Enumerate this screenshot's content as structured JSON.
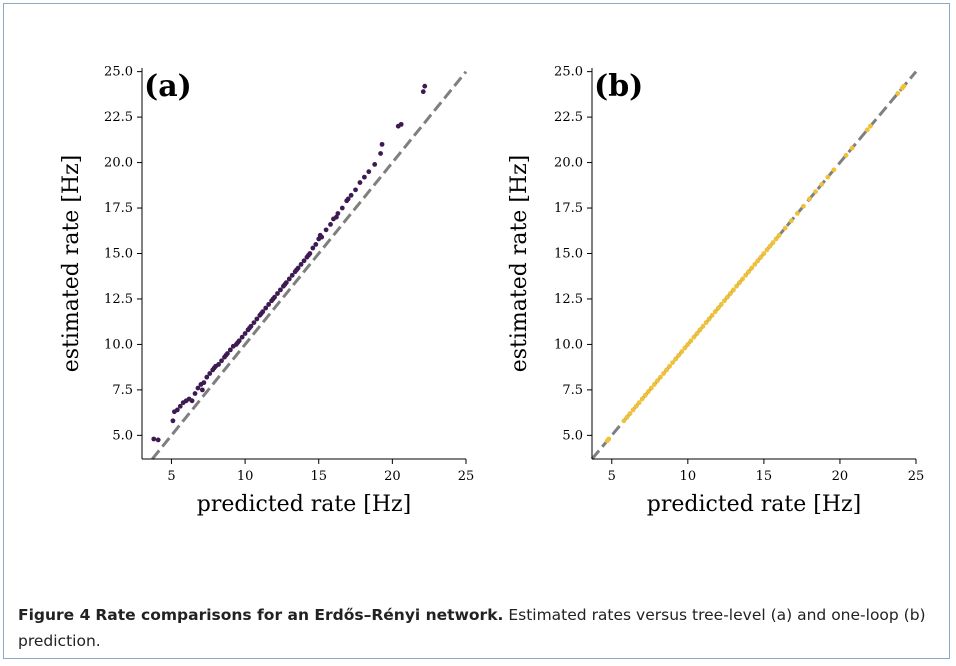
{
  "caption": {
    "label": "Figure 4",
    "title": "Rate comparisons for an Erdős–Rényi network.",
    "text": " Estimated rates versus tree-level (a) and one-loop (b) prediction."
  },
  "chart_data": [
    {
      "type": "scatter",
      "panel_label": "(a)",
      "xlabel": "predicted rate [Hz]",
      "ylabel": "estimated rate [Hz]",
      "xlim": [
        3.0,
        25.0
      ],
      "ylim": [
        3.7,
        25.2
      ],
      "xticks": [
        "5",
        "10",
        "15",
        "20",
        "25"
      ],
      "yticks": [
        "5.0",
        "7.5",
        "10.0",
        "12.5",
        "15.0",
        "17.5",
        "20.0",
        "22.5",
        "25.0"
      ],
      "reference_line": "y = x (dashed, gray)",
      "marker_color": "#3d1a52",
      "grid": false,
      "series": [
        {
          "points": [
            [
              3.8,
              4.8
            ],
            [
              4.1,
              4.75
            ],
            [
              5.1,
              5.8
            ],
            [
              5.2,
              6.3
            ],
            [
              5.4,
              6.4
            ],
            [
              5.6,
              6.6
            ],
            [
              5.8,
              6.8
            ],
            [
              6.0,
              6.9
            ],
            [
              6.2,
              7.0
            ],
            [
              6.4,
              6.9
            ],
            [
              6.6,
              7.3
            ],
            [
              6.8,
              7.6
            ],
            [
              7.0,
              7.8
            ],
            [
              7.2,
              7.9
            ],
            [
              7.4,
              8.2
            ],
            [
              7.6,
              8.4
            ],
            [
              7.8,
              8.6
            ],
            [
              8.0,
              8.8
            ],
            [
              8.2,
              8.9
            ],
            [
              8.4,
              9.1
            ],
            [
              8.6,
              9.3
            ],
            [
              8.8,
              9.5
            ],
            [
              9.0,
              9.7
            ],
            [
              9.2,
              9.9
            ],
            [
              9.4,
              10.0
            ],
            [
              9.6,
              10.2
            ],
            [
              9.8,
              10.4
            ],
            [
              10.0,
              10.6
            ],
            [
              10.2,
              10.8
            ],
            [
              10.4,
              11.0
            ],
            [
              10.6,
              11.2
            ],
            [
              10.8,
              11.4
            ],
            [
              11.0,
              11.6
            ],
            [
              11.2,
              11.8
            ],
            [
              11.4,
              12.0
            ],
            [
              11.6,
              12.2
            ],
            [
              11.8,
              12.4
            ],
            [
              12.0,
              12.6
            ],
            [
              12.2,
              12.8
            ],
            [
              12.4,
              13.0
            ],
            [
              12.6,
              13.2
            ],
            [
              12.8,
              13.4
            ],
            [
              13.0,
              13.6
            ],
            [
              13.2,
              13.8
            ],
            [
              13.4,
              14.0
            ],
            [
              13.6,
              14.2
            ],
            [
              13.8,
              14.4
            ],
            [
              14.0,
              14.6
            ],
            [
              14.2,
              14.8
            ],
            [
              14.4,
              15.0
            ],
            [
              14.6,
              15.3
            ],
            [
              14.8,
              15.5
            ],
            [
              15.0,
              15.8
            ],
            [
              15.2,
              15.9
            ],
            [
              15.5,
              16.3
            ],
            [
              15.8,
              16.6
            ],
            [
              16.0,
              16.9
            ],
            [
              16.3,
              17.2
            ],
            [
              16.6,
              17.5
            ],
            [
              16.9,
              17.9
            ],
            [
              17.2,
              18.2
            ],
            [
              17.5,
              18.5
            ],
            [
              17.8,
              18.9
            ],
            [
              18.1,
              19.2
            ],
            [
              18.4,
              19.5
            ],
            [
              18.8,
              19.9
            ],
            [
              19.2,
              20.5
            ],
            [
              19.3,
              21.0
            ],
            [
              20.4,
              22.0
            ],
            [
              20.6,
              22.1
            ],
            [
              22.1,
              23.9
            ],
            [
              22.2,
              24.2
            ],
            [
              7.1,
              7.5
            ],
            [
              7.9,
              8.7
            ],
            [
              8.7,
              9.4
            ],
            [
              9.5,
              10.1
            ],
            [
              10.3,
              10.9
            ],
            [
              11.1,
              11.7
            ],
            [
              11.9,
              12.5
            ],
            [
              12.7,
              13.3
            ],
            [
              13.5,
              14.1
            ],
            [
              14.3,
              14.9
            ],
            [
              15.1,
              16.0
            ],
            [
              16.2,
              17.0
            ],
            [
              17.0,
              18.0
            ]
          ]
        }
      ]
    },
    {
      "type": "scatter",
      "panel_label": "(b)",
      "xlabel": "predicted rate [Hz]",
      "ylabel": "estimated rate [Hz]",
      "xlim": [
        3.7,
        25.0
      ],
      "ylim": [
        3.7,
        25.2
      ],
      "xticks": [
        "5",
        "10",
        "15",
        "20",
        "25"
      ],
      "yticks": [
        "5.0",
        "7.5",
        "10.0",
        "12.5",
        "15.0",
        "17.5",
        "20.0",
        "22.5",
        "25.0"
      ],
      "reference_line": "y = x (dashed, gray)",
      "marker_color": "#f0c23a",
      "grid": false,
      "series": [
        {
          "points": [
            [
              4.7,
              4.7
            ],
            [
              4.8,
              4.8
            ],
            [
              5.8,
              5.8
            ],
            [
              6.0,
              6.0
            ],
            [
              6.2,
              6.2
            ],
            [
              6.4,
              6.4
            ],
            [
              6.6,
              6.6
            ],
            [
              6.8,
              6.8
            ],
            [
              7.0,
              7.0
            ],
            [
              7.2,
              7.2
            ],
            [
              7.4,
              7.4
            ],
            [
              7.6,
              7.6
            ],
            [
              7.8,
              7.8
            ],
            [
              8.0,
              8.0
            ],
            [
              8.2,
              8.2
            ],
            [
              8.4,
              8.4
            ],
            [
              8.6,
              8.6
            ],
            [
              8.8,
              8.8
            ],
            [
              9.0,
              9.0
            ],
            [
              9.2,
              9.2
            ],
            [
              9.4,
              9.4
            ],
            [
              9.6,
              9.6
            ],
            [
              9.8,
              9.8
            ],
            [
              10.0,
              10.0
            ],
            [
              10.2,
              10.2
            ],
            [
              10.4,
              10.4
            ],
            [
              10.6,
              10.6
            ],
            [
              10.8,
              10.8
            ],
            [
              11.0,
              11.0
            ],
            [
              11.2,
              11.2
            ],
            [
              11.4,
              11.4
            ],
            [
              11.6,
              11.6
            ],
            [
              11.8,
              11.8
            ],
            [
              12.0,
              12.0
            ],
            [
              12.2,
              12.2
            ],
            [
              12.4,
              12.4
            ],
            [
              12.6,
              12.6
            ],
            [
              12.8,
              12.8
            ],
            [
              13.0,
              13.0
            ],
            [
              13.2,
              13.2
            ],
            [
              13.4,
              13.4
            ],
            [
              13.6,
              13.6
            ],
            [
              13.8,
              13.8
            ],
            [
              14.0,
              14.0
            ],
            [
              14.2,
              14.2
            ],
            [
              14.4,
              14.4
            ],
            [
              14.6,
              14.6
            ],
            [
              14.8,
              14.8
            ],
            [
              15.0,
              15.0
            ],
            [
              15.2,
              15.2
            ],
            [
              15.4,
              15.4
            ],
            [
              15.6,
              15.6
            ],
            [
              15.8,
              15.8
            ],
            [
              16.0,
              16.0
            ],
            [
              16.4,
              16.4
            ],
            [
              16.8,
              16.8
            ],
            [
              17.2,
              17.2
            ],
            [
              17.6,
              17.6
            ],
            [
              18.0,
              18.0
            ],
            [
              18.4,
              18.4
            ],
            [
              18.8,
              18.8
            ],
            [
              19.2,
              19.2
            ],
            [
              19.6,
              19.6
            ],
            [
              20.4,
              20.4
            ],
            [
              20.8,
              20.8
            ],
            [
              21.8,
              21.8
            ],
            [
              22.0,
              22.0
            ],
            [
              23.8,
              23.8
            ],
            [
              24.1,
              24.1
            ],
            [
              24.2,
              24.2
            ]
          ]
        }
      ]
    }
  ]
}
